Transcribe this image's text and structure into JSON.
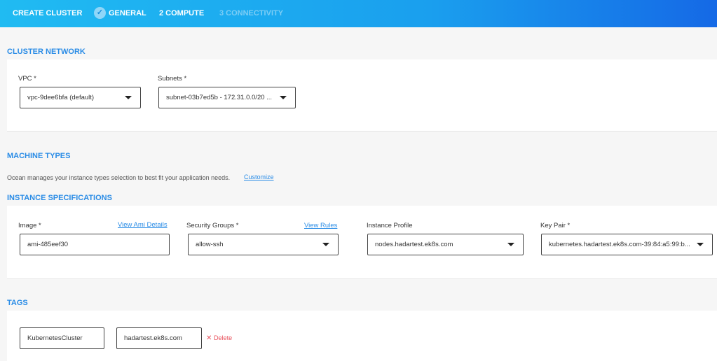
{
  "header": {
    "title": "CREATE CLUSTER",
    "steps": [
      {
        "label": "GENERAL",
        "state": "done"
      },
      {
        "label": "2 COMPUTE",
        "state": "active"
      },
      {
        "label": "3 CONNECTIVITY",
        "state": "pending"
      }
    ]
  },
  "cluster_network": {
    "title": "CLUSTER NETWORK",
    "vpc": {
      "label": "VPC *",
      "value": "vpc-9dee6bfa (default)"
    },
    "subnets": {
      "label": "Subnets *",
      "value": "subnet-03b7ed5b - 172.31.0.0/20 ..."
    }
  },
  "machine_types": {
    "title": "MACHINE TYPES",
    "description": "Ocean manages your instance types selection to best fit your application needs.",
    "customize": "Customize"
  },
  "instance_specs": {
    "title": "INSTANCE SPECIFICATIONS",
    "image": {
      "label": "Image *",
      "link": "View Ami Details",
      "value": "ami-485eef30"
    },
    "security_groups": {
      "label": "Security Groups *",
      "link": "View Rules",
      "value": "allow-ssh"
    },
    "instance_profile": {
      "label": "Instance Profile",
      "value": "nodes.hadartest.ek8s.com"
    },
    "key_pair": {
      "label": "Key Pair *",
      "value": "kubernetes.hadartest.ek8s.com-39:84:a5:99:b..."
    }
  },
  "tags": {
    "title": "TAGS",
    "items": [
      {
        "key": "KubernetesCluster",
        "value": "hadartest.ek8s.com",
        "delete": "Delete"
      }
    ]
  },
  "colors": {
    "accent": "#2a8ce6",
    "delete": "#e8505b"
  }
}
